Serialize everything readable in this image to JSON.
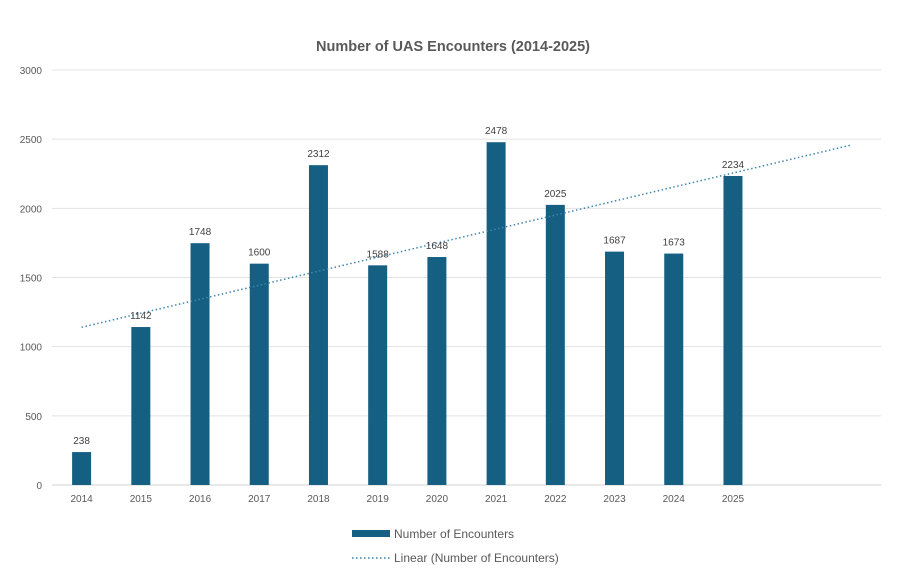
{
  "chart_data": {
    "type": "bar",
    "title": "Number of UAS Encounters (2014-2025)",
    "xlabel": "",
    "ylabel": "",
    "categories": [
      "2014",
      "2015",
      "2016",
      "2017",
      "2018",
      "2019",
      "2020",
      "2021",
      "2022",
      "2023",
      "2024",
      "2025"
    ],
    "series": [
      {
        "name": "Number of Encounters",
        "values": [
          238,
          1142,
          1748,
          1600,
          2312,
          1588,
          1648,
          2478,
          2025,
          1687,
          1673,
          2234
        ],
        "color": "#155f83"
      }
    ],
    "trendline": {
      "name": "Linear (Number of Encounters)",
      "type": "linear",
      "forward_periods": 2,
      "color": "#3f86b0"
    },
    "ylim": [
      0,
      3000
    ],
    "yticks": [
      0,
      500,
      1000,
      1500,
      2000,
      2500,
      3000
    ],
    "grid": true,
    "data_labels": true,
    "legend_position": "bottom"
  }
}
